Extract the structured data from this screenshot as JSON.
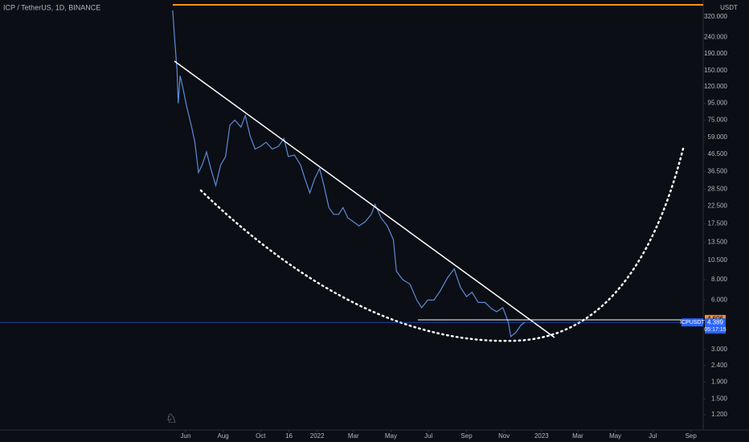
{
  "chart_data": {
    "type": "line",
    "title": "ICP / TetherUS, 1D, BINANCE",
    "unit": "USDT",
    "log_scale": true,
    "xlim": [
      "2020-08-03",
      "2023-09-21"
    ],
    "ylim": [
      0.97,
      405
    ],
    "xticks": [
      {
        "value": "2021-06-01",
        "label": "Jun"
      },
      {
        "value": "2021-08-01",
        "label": "Aug"
      },
      {
        "value": "2021-10-01",
        "label": "Oct"
      },
      {
        "value": "2021-11-16",
        "label": "16"
      },
      {
        "value": "2022-01-01",
        "label": "2022"
      },
      {
        "value": "2022-03-01",
        "label": "Mar"
      },
      {
        "value": "2022-05-01",
        "label": "May"
      },
      {
        "value": "2022-07-01",
        "label": "Jul"
      },
      {
        "value": "2022-09-01",
        "label": "Sep"
      },
      {
        "value": "2022-11-01",
        "label": "Nov"
      },
      {
        "value": "2023-01-01",
        "label": "2023"
      },
      {
        "value": "2023-03-01",
        "label": "Mar"
      },
      {
        "value": "2023-05-01",
        "label": "May"
      },
      {
        "value": "2023-07-01",
        "label": "Jul"
      },
      {
        "value": "2023-09-01",
        "label": "Sep"
      }
    ],
    "yticks": [
      {
        "value": 320,
        "label": "320.000"
      },
      {
        "value": 240,
        "label": "240.000"
      },
      {
        "value": 190,
        "label": "190.000"
      },
      {
        "value": 150,
        "label": "150.000"
      },
      {
        "value": 120,
        "label": "120.000"
      },
      {
        "value": 95,
        "label": "95.000"
      },
      {
        "value": 75,
        "label": "75.000"
      },
      {
        "value": 59,
        "label": "59.000"
      },
      {
        "value": 46.5,
        "label": "46.500"
      },
      {
        "value": 36.5,
        "label": "36.500"
      },
      {
        "value": 28.5,
        "label": "28.500"
      },
      {
        "value": 22.5,
        "label": "22.500"
      },
      {
        "value": 17.5,
        "label": "17.500"
      },
      {
        "value": 13.5,
        "label": "13.500"
      },
      {
        "value": 10.5,
        "label": "10.500"
      },
      {
        "value": 8,
        "label": "8.000"
      },
      {
        "value": 6,
        "label": "6.000"
      },
      {
        "value": 3,
        "label": "3.000"
      },
      {
        "value": 2.4,
        "label": "2.400"
      },
      {
        "value": 1.9,
        "label": "1.900"
      },
      {
        "value": 1.5,
        "label": "1.500"
      },
      {
        "value": 1.2,
        "label": "1.200"
      }
    ],
    "alert_price": 4.606,
    "last_price": 4.389,
    "symbol": "ICPUSDT",
    "countdown": "05:17:15",
    "series": [
      {
        "name": "ICPUSDT",
        "color": "#5b8bd6",
        "x": [
          "2021-05-11",
          "2021-05-14",
          "2021-05-18",
          "2021-05-20",
          "2021-05-23",
          "2021-05-27",
          "2021-06-03",
          "2021-06-10",
          "2021-06-16",
          "2021-06-22",
          "2021-06-28",
          "2021-07-05",
          "2021-07-12",
          "2021-07-20",
          "2021-07-28",
          "2021-08-05",
          "2021-08-12",
          "2021-08-20",
          "2021-08-30",
          "2021-09-06",
          "2021-09-14",
          "2021-09-22",
          "2021-10-01",
          "2021-10-10",
          "2021-10-20",
          "2021-10-30",
          "2021-11-08",
          "2021-11-15",
          "2021-11-25",
          "2021-12-05",
          "2021-12-12",
          "2021-12-20",
          "2021-12-28",
          "2022-01-05",
          "2022-01-12",
          "2022-01-20",
          "2022-01-28",
          "2022-02-05",
          "2022-02-12",
          "2022-02-20",
          "2022-03-01",
          "2022-03-10",
          "2022-03-20",
          "2022-03-30",
          "2022-04-05",
          "2022-04-15",
          "2022-04-25",
          "2022-05-05",
          "2022-05-10",
          "2022-05-20",
          "2022-06-01",
          "2022-06-12",
          "2022-06-20",
          "2022-06-30",
          "2022-07-10",
          "2022-07-20",
          "2022-08-01",
          "2022-08-12",
          "2022-08-22",
          "2022-09-01",
          "2022-09-10",
          "2022-09-20",
          "2022-10-01",
          "2022-10-12",
          "2022-10-20",
          "2022-10-30",
          "2022-11-08",
          "2022-11-12",
          "2022-11-20",
          "2022-11-28",
          "2022-12-05"
        ],
        "values": [
          350,
          240,
          150,
          95,
          140,
          120,
          90,
          70,
          55,
          36,
          40,
          48,
          38,
          30,
          40,
          45,
          70,
          75,
          68,
          80,
          60,
          50,
          52,
          55,
          50,
          52,
          58,
          45,
          46,
          40,
          33,
          27,
          33,
          38,
          30,
          22,
          20,
          20,
          22,
          19,
          18,
          17,
          18,
          20,
          23,
          19,
          17,
          14,
          9,
          8,
          7.5,
          6,
          5.4,
          6,
          6,
          6.8,
          8.2,
          9.3,
          7.2,
          6.3,
          6.7,
          5.8,
          5.8,
          5.3,
          5.1,
          5.4,
          4.4,
          3.6,
          3.8,
          4.2,
          4.4
        ]
      }
    ]
  }
}
